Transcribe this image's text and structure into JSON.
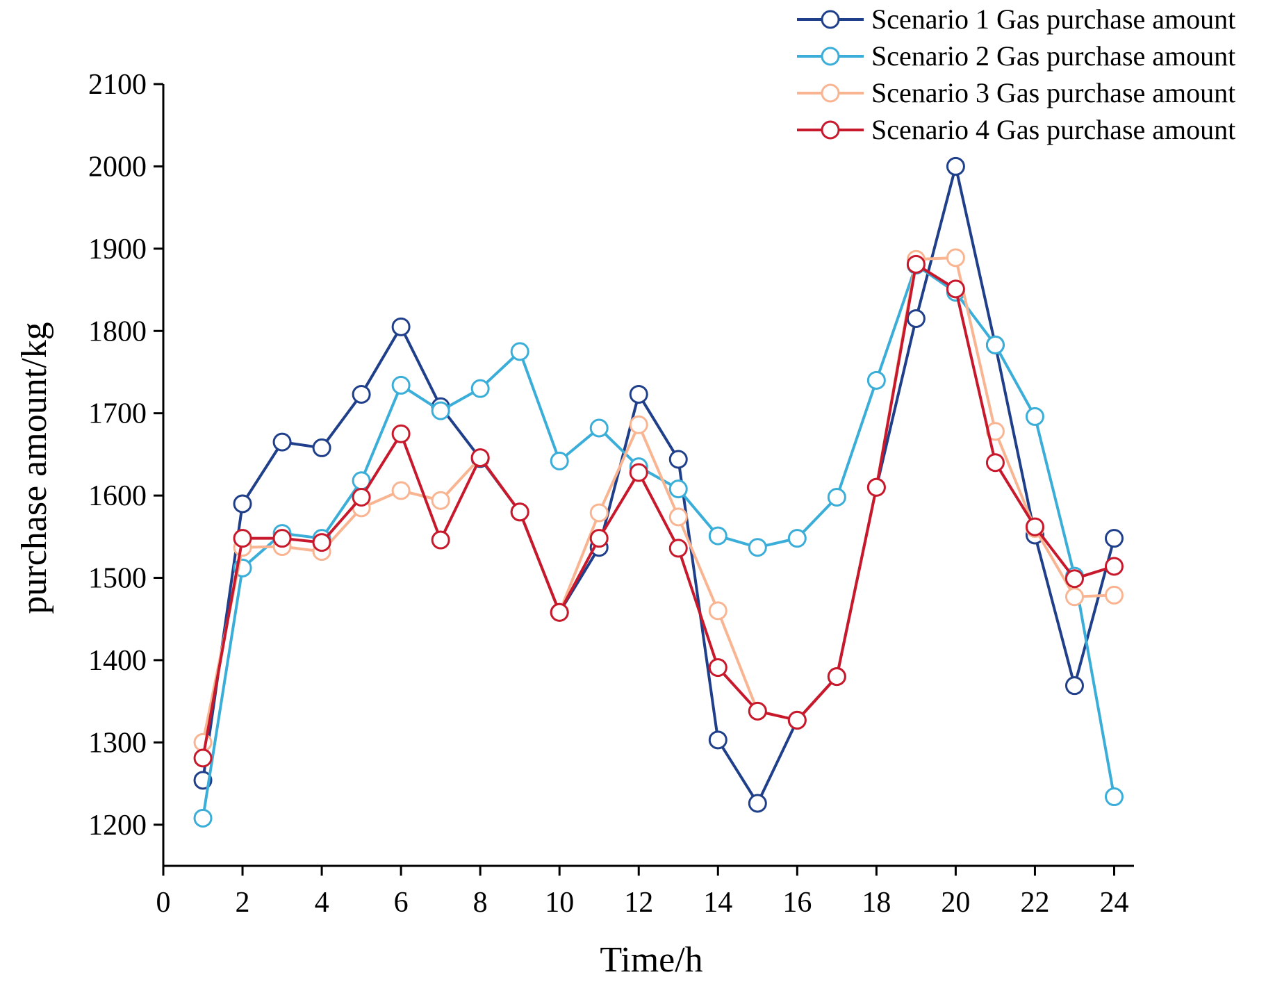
{
  "chart_data": {
    "type": "line",
    "xlabel": "Time/h",
    "ylabel": "purchase amount/kg",
    "xlim": [
      0,
      24.5
    ],
    "ylim": [
      1150,
      2100
    ],
    "xticks": [
      0,
      2,
      4,
      6,
      8,
      10,
      12,
      14,
      16,
      18,
      20,
      22,
      24
    ],
    "yticks": [
      1200,
      1300,
      1400,
      1500,
      1600,
      1700,
      1800,
      1900,
      2000,
      2100
    ],
    "x": [
      1,
      2,
      3,
      4,
      5,
      6,
      7,
      8,
      9,
      10,
      11,
      12,
      13,
      14,
      15,
      16,
      17,
      18,
      19,
      20,
      21,
      22,
      23,
      24
    ],
    "legend_position": "top-right",
    "series": [
      {
        "name": "Scenario 1 Gas purchase amount",
        "color": "#1f3f8a",
        "values": [
          1254,
          1590,
          1665,
          1658,
          1723,
          1805,
          1708,
          1645,
          1580,
          1458,
          1537,
          1723,
          1644,
          1303,
          1226,
          1327,
          1380,
          1610,
          1815,
          2000,
          1783,
          1552,
          1369,
          1548
        ]
      },
      {
        "name": "Scenario 2 Gas purchase amount",
        "color": "#3aaed8",
        "values": [
          1208,
          1512,
          1554,
          1548,
          1618,
          1734,
          1703,
          1730,
          1775,
          1642,
          1682,
          1635,
          1608,
          1551,
          1537,
          1548,
          1598,
          1740,
          1880,
          1847,
          1783,
          1696,
          1502,
          1234
        ]
      },
      {
        "name": "Scenario 3 Gas purchase amount",
        "color": "#f9b592",
        "values": [
          1300,
          1537,
          1538,
          1532,
          1585,
          1606,
          1594,
          1646,
          1580,
          1458,
          1579,
          1686,
          1574,
          1460,
          1338,
          1327,
          1380,
          1610,
          1887,
          1889,
          1678,
          1560,
          1477,
          1479
        ]
      },
      {
        "name": "Scenario 4 Gas purchase amount",
        "color": "#c8182b",
        "values": [
          1281,
          1548,
          1548,
          1543,
          1598,
          1675,
          1546,
          1646,
          1580,
          1458,
          1548,
          1628,
          1536,
          1391,
          1338,
          1327,
          1380,
          1610,
          1881,
          1851,
          1640,
          1562,
          1499,
          1514
        ]
      }
    ]
  }
}
